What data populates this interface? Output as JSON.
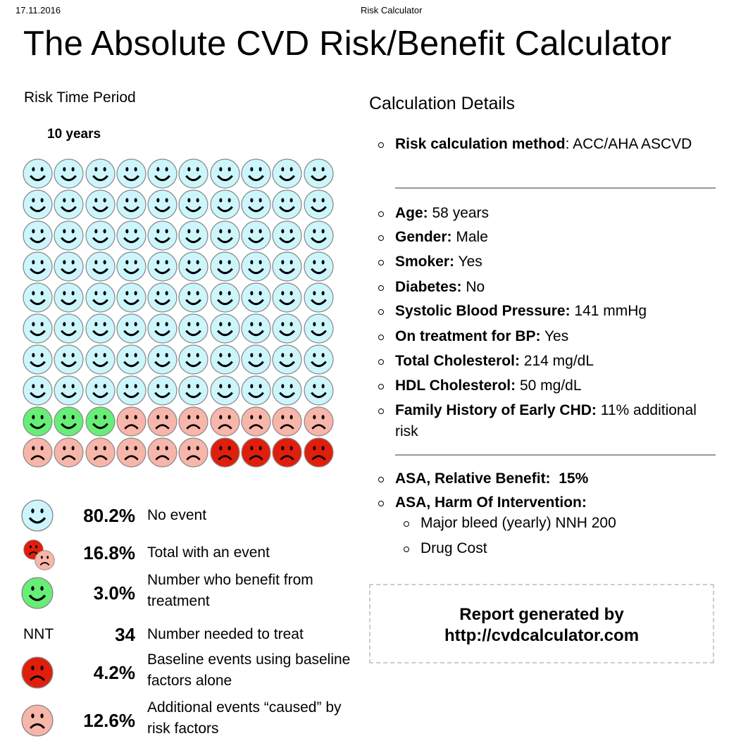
{
  "header": {
    "date": "17.11.2016",
    "page_title": "Risk Calculator"
  },
  "title": "The Absolute CVD Risk/Benefit Calculator",
  "risk_period": {
    "label": "Risk Time Period",
    "value": "10 years"
  },
  "grid": {
    "rows": [
      [
        "happy-blue",
        "happy-blue",
        "happy-blue",
        "happy-blue",
        "happy-blue",
        "happy-blue",
        "happy-blue",
        "happy-blue",
        "happy-blue",
        "happy-blue"
      ],
      [
        "happy-blue",
        "happy-blue",
        "happy-blue",
        "happy-blue",
        "happy-blue",
        "happy-blue",
        "happy-blue",
        "happy-blue",
        "happy-blue",
        "happy-blue"
      ],
      [
        "happy-blue",
        "happy-blue",
        "happy-blue",
        "happy-blue",
        "happy-blue",
        "happy-blue",
        "happy-blue",
        "happy-blue",
        "happy-blue",
        "happy-blue"
      ],
      [
        "happy-blue",
        "happy-blue",
        "happy-blue",
        "happy-blue",
        "happy-blue",
        "happy-blue",
        "happy-blue",
        "happy-blue",
        "happy-blue",
        "happy-blue"
      ],
      [
        "happy-blue",
        "happy-blue",
        "happy-blue",
        "happy-blue",
        "happy-blue",
        "happy-blue",
        "happy-blue",
        "happy-blue",
        "happy-blue",
        "happy-blue"
      ],
      [
        "happy-blue",
        "happy-blue",
        "happy-blue",
        "happy-blue",
        "happy-blue",
        "happy-blue",
        "happy-blue",
        "happy-blue",
        "happy-blue",
        "happy-blue"
      ],
      [
        "happy-blue",
        "happy-blue",
        "happy-blue",
        "happy-blue",
        "happy-blue",
        "happy-blue",
        "happy-blue",
        "happy-blue",
        "happy-blue",
        "happy-blue"
      ],
      [
        "happy-blue",
        "happy-blue",
        "happy-blue",
        "happy-blue",
        "happy-blue",
        "happy-blue",
        "happy-blue",
        "happy-blue",
        "happy-blue",
        "happy-blue"
      ],
      [
        "happy-green",
        "happy-green",
        "happy-green",
        "sad-pink",
        "sad-pink",
        "sad-pink",
        "sad-pink",
        "sad-pink",
        "sad-pink",
        "sad-pink"
      ],
      [
        "sad-pink",
        "sad-pink",
        "sad-pink",
        "sad-pink",
        "sad-pink",
        "sad-pink",
        "sad-red",
        "sad-red",
        "sad-red",
        "sad-red"
      ]
    ]
  },
  "colors": {
    "blue": "#ccf6fc",
    "green": "#66ee77",
    "pink": "#f8b5aa",
    "red": "#e01e0c"
  },
  "legend": [
    {
      "icon": "happy-blue",
      "pct": "80.2%",
      "text": "No event"
    },
    {
      "icon": "sad-red-pink",
      "pct": "16.8%",
      "text": "Total with an event"
    },
    {
      "icon": "happy-green",
      "pct": "3.0%",
      "text": "Number who benefit from treatment"
    },
    {
      "icon": "NNT",
      "pct": "34",
      "text": "Number needed to treat"
    },
    {
      "icon": "sad-red",
      "pct": "4.2%",
      "text": "Baseline events using baseline factors alone"
    },
    {
      "icon": "sad-pink",
      "pct": "12.6%",
      "text": "Additional events “caused” by risk factors"
    }
  ],
  "details": {
    "title": "Calculation Details",
    "method": {
      "k": "Risk calculation method",
      "v": ": ACC/AHA ASCVD"
    },
    "items": [
      {
        "k": "Age:",
        "v": " 58 years"
      },
      {
        "k": "Gender:",
        "v": " Male"
      },
      {
        "k": "Smoker:",
        "v": " Yes"
      },
      {
        "k": "Diabetes:",
        "v": " No"
      },
      {
        "k": "Systolic Blood Pressure:",
        "v": " 141 mmHg"
      },
      {
        "k": "On treatment for BP:",
        "v": " Yes"
      },
      {
        "k": "Total Cholesterol:",
        "v": " 214 mg/dL"
      },
      {
        "k": "HDL Cholesterol:",
        "v": " 50 mg/dL"
      },
      {
        "k": "Family History of Early CHD:",
        "v": " 11% additional risk"
      }
    ],
    "asa_benefit": {
      "k": "ASA, Relative Benefit:",
      "v": "  15%"
    },
    "asa_harm": {
      "k": "ASA, Harm Of Intervention:",
      "sub": [
        "Major bleed (yearly) NNH 200",
        "Drug Cost"
      ]
    }
  },
  "report": {
    "line1": "Report generated by",
    "line2": "http://cvdcalculator.com"
  }
}
